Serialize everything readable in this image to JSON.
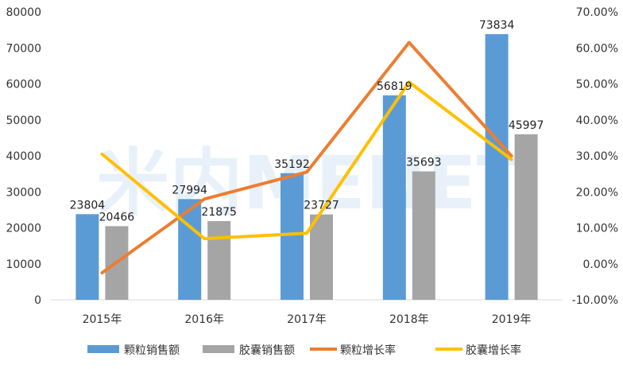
{
  "chart_data": {
    "type": "bar",
    "categories": [
      "2015年",
      "2016年",
      "2017年",
      "2018年",
      "2019年"
    ],
    "series": [
      {
        "name": "颗粒销售额",
        "kind": "bar",
        "axis": "left",
        "color": "#5B9BD5",
        "values": [
          23804,
          27994,
          35192,
          56819,
          73834
        ]
      },
      {
        "name": "胶囊销售额",
        "kind": "bar",
        "axis": "left",
        "color": "#A5A5A5",
        "values": [
          20466,
          21875,
          23727,
          35693,
          45997
        ]
      },
      {
        "name": "颗粒增长率",
        "kind": "line",
        "axis": "right",
        "color": "#ED7D31",
        "values": [
          -2.5,
          18.0,
          25.5,
          61.5,
          30.0
        ]
      },
      {
        "name": "胶囊增长率",
        "kind": "line",
        "axis": "right",
        "color": "#FFC000",
        "values": [
          30.5,
          7.0,
          8.5,
          50.5,
          29.0
        ]
      }
    ],
    "y_left": {
      "range": [
        0,
        80000
      ],
      "ticks": [
        "0",
        "10000",
        "20000",
        "30000",
        "40000",
        "50000",
        "60000",
        "70000",
        "80000"
      ]
    },
    "y_right": {
      "range": [
        -10,
        70
      ],
      "ticks": [
        "-10.00%",
        "0.00%",
        "10.00%",
        "20.00%",
        "30.00%",
        "40.00%",
        "50.00%",
        "60.00%",
        "70.00%"
      ]
    },
    "bar_data_labels": {
      "颗粒销售额": [
        "23804",
        "27994",
        "35192",
        "56819",
        "73834"
      ],
      "胶囊销售额": [
        "20466",
        "21875",
        "23727",
        "35693",
        "45997"
      ]
    },
    "legend": {
      "position": "bottom",
      "entries": [
        "颗粒销售额",
        "胶囊销售额",
        "颗粒增长率",
        "胶囊增长率"
      ]
    },
    "grid": false
  },
  "watermark": {
    "text": "米内MENET"
  }
}
